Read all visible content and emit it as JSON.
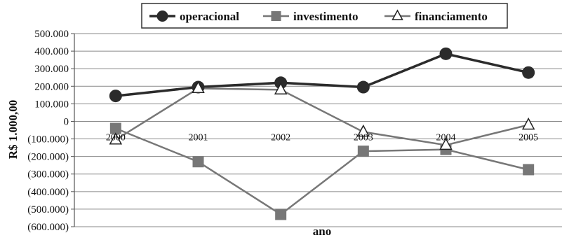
{
  "chart_data": {
    "type": "line",
    "title": "",
    "xlabel": "ano",
    "ylabel": "R$ 1.000,00",
    "categories": [
      "2000",
      "2001",
      "2002",
      "2003",
      "2004",
      "2005"
    ],
    "ylim": [
      -600000,
      500000
    ],
    "yticks": [
      500000,
      400000,
      300000,
      200000,
      100000,
      0,
      -100000,
      -200000,
      -300000,
      -400000,
      -500000,
      -600000
    ],
    "ytick_labels": [
      "500.000",
      "400.000",
      "300.000",
      "200.000",
      "100.000",
      "0",
      "(100.000)",
      "(200.000)",
      "(300.000)",
      "(400.000)",
      "(500.000)",
      "(600.000)"
    ],
    "grid": true,
    "legend_position": "top",
    "series": [
      {
        "name": "operacional",
        "values": [
          145000,
          195000,
          220000,
          195000,
          385000,
          278000
        ],
        "color": "#2b2b2b",
        "marker": "circle"
      },
      {
        "name": "investimento",
        "values": [
          -40000,
          -230000,
          -530000,
          -170000,
          -160000,
          -275000
        ],
        "color": "#777777",
        "marker": "square"
      },
      {
        "name": "financiamento",
        "values": [
          -105000,
          188000,
          180000,
          -60000,
          -135000,
          -20000
        ],
        "color": "#777777",
        "marker": "triangle"
      }
    ]
  }
}
